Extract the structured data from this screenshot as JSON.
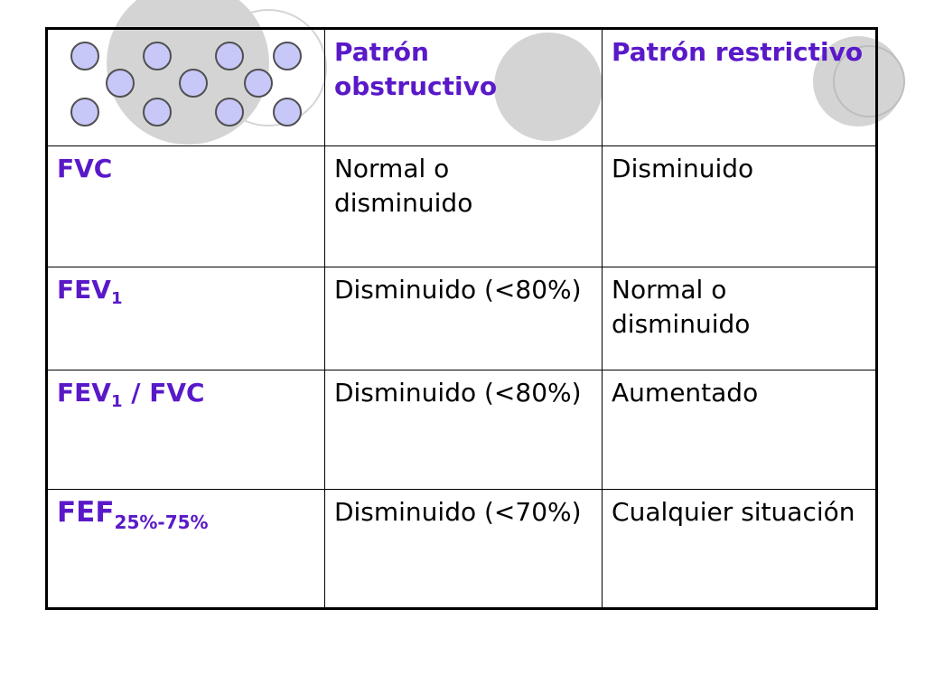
{
  "table": {
    "header": {
      "col2": "Patrón obstructivo",
      "col3": "Patrón restrictivo"
    },
    "rows": [
      {
        "param_main": "FVC",
        "param_sub": "",
        "param_suffix": "",
        "obstructive": "Normal o disminuido",
        "restrictive": "Disminuido"
      },
      {
        "param_main": "FEV",
        "param_sub": "1",
        "param_suffix": "",
        "obstructive": "Disminuido (<80%)",
        "restrictive": "Normal o disminuido"
      },
      {
        "param_main": "FEV",
        "param_sub": "1",
        "param_suffix": " / FVC",
        "obstructive": "Disminuido (<80%)",
        "restrictive": "Aumentado"
      },
      {
        "param_main": "FEF",
        "param_sub": "25%-75%",
        "param_suffix": "",
        "obstructive": "Disminuido (<70%)",
        "restrictive": "Cualquier situación"
      }
    ]
  },
  "colors": {
    "label": "#5a19c8",
    "circle_fill": "#c8c8f8",
    "circle_stroke": "#505050",
    "decor_fill": "#d4d4d4"
  }
}
